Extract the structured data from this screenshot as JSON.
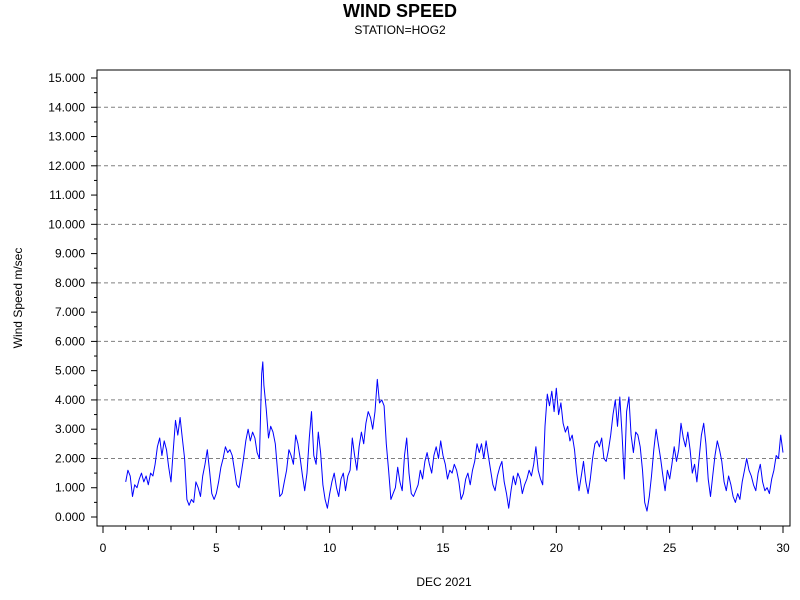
{
  "chart_data": {
    "type": "line",
    "title": "WIND SPEED",
    "subtitle": "STATION=HOG2",
    "xlabel": "DEC 2021",
    "ylabel": "Wind Speed m/sec",
    "xlim": [
      0,
      30.2
    ],
    "ylim": [
      0,
      15
    ],
    "x_ticks": [
      0,
      5,
      10,
      15,
      20,
      25,
      30
    ],
    "x_tick_labels": [
      "0",
      "5",
      "10",
      "15",
      "20",
      "25",
      "30"
    ],
    "y_ticks": [
      0,
      1,
      2,
      3,
      4,
      5,
      6,
      7,
      8,
      9,
      10,
      11,
      12,
      13,
      14,
      15
    ],
    "y_tick_labels": [
      "0.000",
      "1.000",
      "2.000",
      "3.000",
      "4.000",
      "5.000",
      "6.000",
      "7.000",
      "8.000",
      "9.000",
      "10.000",
      "11.000",
      "12.000",
      "13.000",
      "14.000",
      "15.000"
    ],
    "grid": "y-dashed",
    "line_color": "#0000ff",
    "series": [
      {
        "x": [
          1.0,
          1.1,
          1.2,
          1.3,
          1.4,
          1.5,
          1.6,
          1.7,
          1.8,
          1.9,
          2.0,
          2.1,
          2.2,
          2.3,
          2.4,
          2.5,
          2.6,
          2.7,
          2.8,
          2.9,
          3.0,
          3.1,
          3.2,
          3.3,
          3.4,
          3.5,
          3.6,
          3.7,
          3.8,
          3.9,
          4.0,
          4.1,
          4.2,
          4.3,
          4.4,
          4.5,
          4.6,
          4.7,
          4.8,
          4.9,
          5.0,
          5.1,
          5.2,
          5.3,
          5.4,
          5.5,
          5.6,
          5.7,
          5.8,
          5.9,
          6.0,
          6.1,
          6.2,
          6.3,
          6.4,
          6.5,
          6.6,
          6.7,
          6.8,
          6.9,
          7.0,
          7.05,
          7.1,
          7.2,
          7.3,
          7.4,
          7.5,
          7.6,
          7.7,
          7.8,
          7.9,
          8.0,
          8.1,
          8.2,
          8.3,
          8.4,
          8.5,
          8.6,
          8.7,
          8.8,
          8.9,
          9.0,
          9.1,
          9.2,
          9.3,
          9.4,
          9.5,
          9.6,
          9.7,
          9.8,
          9.9,
          10.0,
          10.1,
          10.2,
          10.3,
          10.4,
          10.5,
          10.6,
          10.7,
          10.8,
          10.9,
          11.0,
          11.1,
          11.2,
          11.3,
          11.4,
          11.5,
          11.6,
          11.7,
          11.8,
          11.9,
          12.0,
          12.1,
          12.2,
          12.3,
          12.4,
          12.5,
          12.6,
          12.7,
          12.8,
          12.9,
          13.0,
          13.1,
          13.2,
          13.3,
          13.4,
          13.5,
          13.6,
          13.7,
          13.8,
          13.9,
          14.0,
          14.1,
          14.2,
          14.3,
          14.4,
          14.5,
          14.6,
          14.7,
          14.8,
          14.9,
          15.0,
          15.1,
          15.2,
          15.3,
          15.4,
          15.5,
          15.6,
          15.7,
          15.8,
          15.9,
          16.0,
          16.1,
          16.2,
          16.3,
          16.4,
          16.5,
          16.6,
          16.7,
          16.8,
          16.9,
          17.0,
          17.1,
          17.2,
          17.3,
          17.4,
          17.5,
          17.6,
          17.7,
          17.8,
          17.9,
          18.0,
          18.1,
          18.2,
          18.3,
          18.4,
          18.5,
          18.6,
          18.7,
          18.8,
          18.9,
          19.0,
          19.1,
          19.2,
          19.3,
          19.4,
          19.5,
          19.6,
          19.7,
          19.8,
          19.9,
          20.0,
          20.1,
          20.2,
          20.3,
          20.4,
          20.5,
          20.6,
          20.7,
          20.8,
          20.9,
          21.0,
          21.1,
          21.2,
          21.3,
          21.4,
          21.5,
          21.6,
          21.7,
          21.8,
          21.9,
          22.0,
          22.1,
          22.2,
          22.3,
          22.4,
          22.5,
          22.6,
          22.7,
          22.8,
          22.9,
          23.0,
          23.1,
          23.2,
          23.3,
          23.4,
          23.5,
          23.6,
          23.7,
          23.8,
          23.9,
          24.0,
          24.1,
          24.2,
          24.3,
          24.4,
          24.5,
          24.6,
          24.7,
          24.8,
          24.9,
          25.0,
          25.1,
          25.2,
          25.3,
          25.4,
          25.5,
          25.6,
          25.7,
          25.8,
          25.9,
          26.0,
          26.1,
          26.2,
          26.3,
          26.4,
          26.5,
          26.6,
          26.7,
          26.8,
          26.9,
          27.0,
          27.1,
          27.2,
          27.3,
          27.4,
          27.5,
          27.6,
          27.7,
          27.8,
          27.9,
          28.0,
          28.1,
          28.2,
          28.3,
          28.4,
          28.5,
          28.6,
          28.7,
          28.8,
          28.9,
          29.0,
          29.1,
          29.2,
          29.3,
          29.4,
          29.5,
          29.6,
          29.7,
          29.8,
          29.9,
          30.0
        ],
        "y": [
          1.2,
          1.6,
          1.4,
          0.7,
          1.1,
          1.0,
          1.3,
          1.5,
          1.2,
          1.4,
          1.1,
          1.5,
          1.4,
          1.8,
          2.4,
          2.7,
          2.1,
          2.6,
          2.3,
          1.7,
          1.2,
          2.3,
          3.3,
          2.8,
          3.4,
          2.7,
          2.0,
          0.6,
          0.4,
          0.6,
          0.5,
          1.2,
          1.0,
          0.7,
          1.4,
          1.8,
          2.3,
          1.6,
          0.8,
          0.6,
          0.8,
          1.2,
          1.7,
          2.0,
          2.4,
          2.2,
          2.3,
          2.1,
          1.6,
          1.1,
          1.0,
          1.5,
          2.0,
          2.6,
          3.0,
          2.6,
          2.9,
          2.7,
          2.2,
          2.0,
          4.9,
          5.3,
          4.5,
          3.7,
          2.7,
          3.1,
          2.9,
          2.5,
          1.6,
          0.7,
          0.8,
          1.2,
          1.6,
          2.3,
          2.1,
          1.8,
          2.8,
          2.5,
          2.0,
          1.4,
          0.9,
          1.5,
          2.7,
          3.6,
          2.1,
          1.8,
          2.9,
          2.2,
          1.1,
          0.6,
          0.3,
          0.8,
          1.2,
          1.5,
          1.0,
          0.7,
          1.3,
          1.5,
          0.9,
          1.4,
          1.6,
          2.7,
          2.1,
          1.6,
          2.4,
          2.9,
          2.5,
          3.2,
          3.6,
          3.4,
          3.0,
          3.6,
          4.7,
          3.9,
          4.0,
          3.8,
          2.5,
          1.6,
          0.6,
          0.8,
          1.0,
          1.7,
          1.2,
          0.9,
          2.1,
          2.7,
          1.5,
          0.8,
          0.7,
          0.9,
          1.1,
          1.6,
          1.3,
          1.9,
          2.2,
          1.8,
          1.5,
          2.1,
          2.4,
          2.0,
          2.6,
          2.1,
          1.8,
          1.3,
          1.6,
          1.5,
          1.8,
          1.6,
          1.2,
          0.6,
          0.8,
          1.3,
          1.5,
          1.1,
          1.6,
          1.9,
          2.5,
          2.2,
          2.5,
          2.0,
          2.6,
          2.1,
          1.6,
          1.1,
          0.9,
          1.4,
          1.7,
          1.9,
          1.2,
          0.8,
          0.3,
          0.9,
          1.4,
          1.1,
          1.5,
          1.3,
          0.8,
          1.1,
          1.3,
          1.6,
          1.4,
          1.8,
          2.4,
          1.6,
          1.3,
          1.1,
          3.1,
          4.2,
          3.8,
          4.3,
          3.6,
          4.4,
          3.5,
          3.9,
          3.2,
          2.9,
          3.1,
          2.6,
          2.8,
          2.3,
          1.5,
          0.9,
          1.4,
          1.9,
          1.2,
          0.8,
          1.3,
          2.0,
          2.5,
          2.6,
          2.4,
          2.7,
          2.0,
          1.9,
          2.3,
          2.8,
          3.5,
          4.0,
          3.1,
          4.1,
          2.8,
          1.3,
          3.6,
          4.1,
          2.8,
          2.2,
          2.9,
          2.8,
          2.4,
          1.6,
          0.5,
          0.2,
          0.7,
          1.4,
          2.3,
          3.0,
          2.5,
          2.0,
          1.4,
          0.9,
          1.6,
          1.3,
          1.8,
          2.4,
          1.9,
          2.3,
          3.2,
          2.7,
          2.4,
          2.9,
          2.3,
          1.5,
          1.8,
          1.2,
          2.0,
          2.8,
          3.2,
          2.5,
          1.3,
          0.7,
          1.4,
          2.1,
          2.6,
          2.3,
          1.9,
          1.2,
          0.9,
          1.4,
          1.1,
          0.7,
          0.5,
          0.8,
          0.6,
          1.2,
          1.6,
          2.0,
          1.6,
          1.4,
          1.1,
          0.9,
          1.5,
          1.8,
          1.2,
          0.9,
          1.0,
          0.8,
          1.3,
          1.6,
          2.1,
          2.0,
          2.8,
          2.2
        ]
      }
    ]
  }
}
